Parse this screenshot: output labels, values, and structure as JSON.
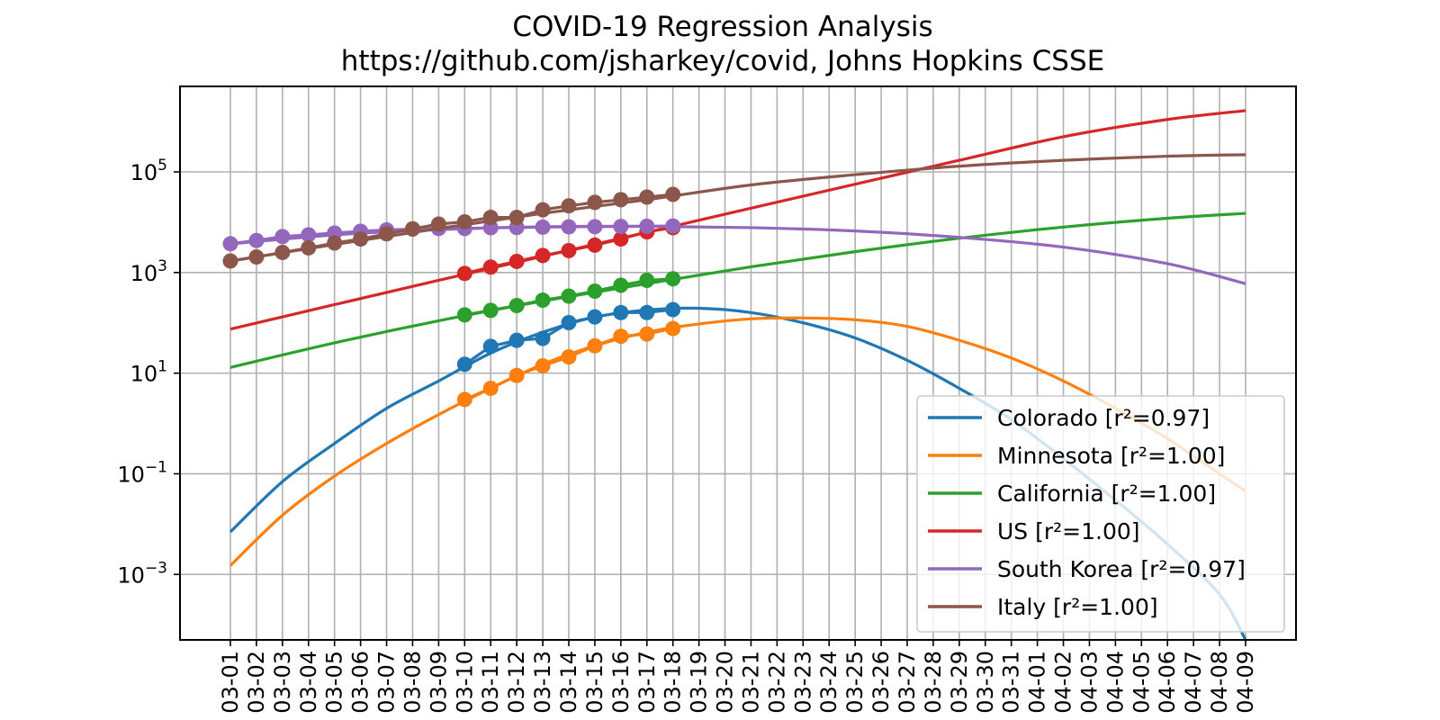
{
  "chart_data": {
    "type": "line",
    "title": "COVID-19 Regression Analysis",
    "subtitle": "https://github.com/jsharkey/covid, Johns Hopkins CSSE",
    "xlabel": "",
    "ylabel": "",
    "y_scale": "log",
    "ylim": [
      5e-05,
      5000000
    ],
    "y_ticks": [
      {
        "exp": -3,
        "label_base": "10",
        "label_exp": "−3"
      },
      {
        "exp": -1,
        "label_base": "10",
        "label_exp": "−1"
      },
      {
        "exp": 1,
        "label_base": "10",
        "label_exp": "1"
      },
      {
        "exp": 3,
        "label_base": "10",
        "label_exp": "3"
      },
      {
        "exp": 5,
        "label_base": "10",
        "label_exp": "5"
      }
    ],
    "x_categories": [
      "03-01",
      "03-02",
      "03-03",
      "03-04",
      "03-05",
      "03-06",
      "03-07",
      "03-08",
      "03-09",
      "03-10",
      "03-11",
      "03-12",
      "03-13",
      "03-14",
      "03-15",
      "03-16",
      "03-17",
      "03-18",
      "03-19",
      "03-20",
      "03-21",
      "03-22",
      "03-23",
      "03-24",
      "03-25",
      "03-26",
      "03-27",
      "03-28",
      "03-29",
      "03-30",
      "03-31",
      "04-01",
      "04-02",
      "04-03",
      "04-04",
      "04-05",
      "04-06",
      "04-07",
      "04-08",
      "04-09"
    ],
    "grid": true,
    "legend_position": "lower-right",
    "series": [
      {
        "name": "Colorado [r²=0.97]",
        "color": "#1f77b4",
        "observed_start": "03-10",
        "observed": [
          15,
          34,
          45,
          49,
          101,
          131,
          160,
          160,
          183
        ],
        "fit": [
          [
            "03-01",
            0.007
          ],
          [
            "03-03",
            0.07
          ],
          [
            "03-05",
            0.4
          ],
          [
            "03-07",
            2
          ],
          [
            "03-09",
            7
          ],
          [
            "03-11",
            25
          ],
          [
            "03-13",
            65
          ],
          [
            "03-15",
            130
          ],
          [
            "03-17",
            180
          ],
          [
            "03-19",
            195
          ],
          [
            "03-21",
            160
          ],
          [
            "03-23",
            100
          ],
          [
            "03-25",
            50
          ],
          [
            "03-27",
            18
          ],
          [
            "03-29",
            5
          ],
          [
            "03-31",
            1.2
          ],
          [
            "04-02",
            0.2
          ],
          [
            "04-04",
            0.03
          ],
          [
            "04-06",
            0.004
          ],
          [
            "04-08",
            0.0004
          ],
          [
            "04-09",
            5e-05
          ]
        ]
      },
      {
        "name": "Minnesota [r²=1.00]",
        "color": "#ff7f0e",
        "observed_start": "03-10",
        "observed": [
          3,
          5,
          9,
          14,
          21,
          35,
          54,
          60,
          77
        ],
        "fit": [
          [
            "03-01",
            0.0015
          ],
          [
            "03-03",
            0.015
          ],
          [
            "03-05",
            0.09
          ],
          [
            "03-07",
            0.4
          ],
          [
            "03-09",
            1.5
          ],
          [
            "03-11",
            5
          ],
          [
            "03-13",
            15
          ],
          [
            "03-15",
            35
          ],
          [
            "03-17",
            65
          ],
          [
            "03-19",
            95
          ],
          [
            "03-21",
            120
          ],
          [
            "03-23",
            125
          ],
          [
            "03-25",
            115
          ],
          [
            "03-27",
            85
          ],
          [
            "03-29",
            45
          ],
          [
            "03-31",
            20
          ],
          [
            "04-02",
            7
          ],
          [
            "04-04",
            2
          ],
          [
            "04-06",
            0.5
          ],
          [
            "04-08",
            0.1
          ],
          [
            "04-09",
            0.045
          ]
        ]
      },
      {
        "name": "California [r²=1.00]",
        "color": "#2ca02c",
        "observed_start": "03-10",
        "observed": [
          144,
          177,
          221,
          282,
          340,
          426,
          557,
          698,
          751
        ],
        "fit": [
          [
            "03-01",
            13
          ],
          [
            "03-05",
            40
          ],
          [
            "03-09",
            110
          ],
          [
            "03-13",
            270
          ],
          [
            "03-17",
            600
          ],
          [
            "03-21",
            1300
          ],
          [
            "03-25",
            2600
          ],
          [
            "03-29",
            4800
          ],
          [
            "04-02",
            8000
          ],
          [
            "04-06",
            12000
          ],
          [
            "04-09",
            15000
          ]
        ]
      },
      {
        "name": "US [r²=1.00]",
        "color": "#d62728",
        "observed_start": "03-10",
        "observed": [
          959,
          1281,
          1663,
          2179,
          2727,
          3499,
          4632,
          6421,
          7786
        ],
        "fit": [
          [
            "03-01",
            75
          ],
          [
            "03-05",
            230
          ],
          [
            "03-09",
            700
          ],
          [
            "03-13",
            2100
          ],
          [
            "03-17",
            6300
          ],
          [
            "03-21",
            19000
          ],
          [
            "03-25",
            57000
          ],
          [
            "03-29",
            170000
          ],
          [
            "04-02",
            500000
          ],
          [
            "04-06",
            1100000
          ],
          [
            "04-09",
            1650000
          ]
        ]
      },
      {
        "name": "South Korea [r²=0.97]",
        "color": "#9467bd",
        "observed_start": "03-01",
        "observed": [
          3736,
          4335,
          5186,
          5621,
          6088,
          6593,
          7041,
          7314,
          7478,
          7513,
          7755,
          7869,
          7979,
          8086,
          8162,
          8236,
          8320,
          8413
        ],
        "fit": [
          [
            "03-01",
            3700
          ],
          [
            "03-05",
            5600
          ],
          [
            "03-09",
            7100
          ],
          [
            "03-13",
            8100
          ],
          [
            "03-17",
            8300
          ],
          [
            "03-21",
            7800
          ],
          [
            "03-25",
            6700
          ],
          [
            "03-29",
            5000
          ],
          [
            "04-02",
            3200
          ],
          [
            "04-06",
            1500
          ],
          [
            "04-09",
            600
          ]
        ]
      },
      {
        "name": "Italy [r²=1.00]",
        "color": "#8c564b",
        "observed_start": "03-01",
        "observed": [
          1694,
          2036,
          2502,
          3089,
          3858,
          4636,
          5883,
          7375,
          9172,
          10149,
          12462,
          12462,
          17660,
          21157,
          24747,
          27980,
          31506,
          35713
        ],
        "fit": [
          [
            "03-01",
            1700
          ],
          [
            "03-05",
            3600
          ],
          [
            "03-09",
            7500
          ],
          [
            "03-13",
            15000
          ],
          [
            "03-17",
            28000
          ],
          [
            "03-21",
            55000
          ],
          [
            "03-25",
            88000
          ],
          [
            "03-29",
            130000
          ],
          [
            "04-02",
            170000
          ],
          [
            "04-06",
            205000
          ],
          [
            "04-09",
            220000
          ]
        ]
      }
    ]
  }
}
